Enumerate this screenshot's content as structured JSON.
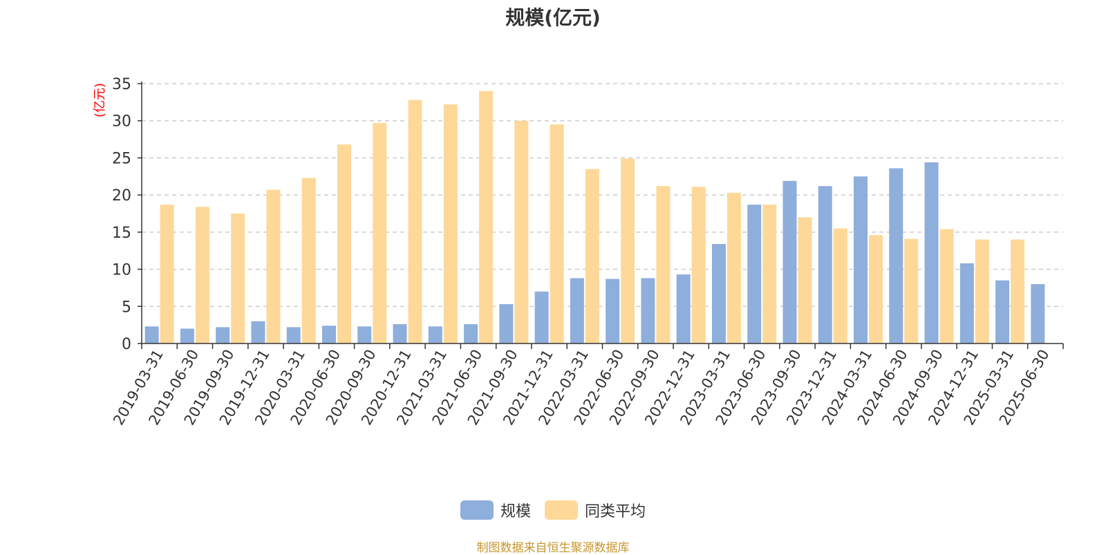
{
  "title": "规模(亿元)",
  "source_note": "制图数据来自恒生聚源数据库",
  "colors": {
    "series_scale": "#8eaedc",
    "series_avg": "#fed898",
    "grid": "#cccccc",
    "axis": "#333333",
    "ylabel": "#ff0000"
  },
  "legend": [
    {
      "label": "规模",
      "color": "#8eaedc"
    },
    {
      "label": "同类平均",
      "color": "#fed898"
    }
  ],
  "chart_data": {
    "type": "bar",
    "title": "规模(亿元)",
    "ylabel": "(亿元)",
    "xlabel": "",
    "ylim": [
      0,
      35
    ],
    "yticks": [
      0,
      5,
      10,
      15,
      20,
      25,
      30,
      35
    ],
    "grid": true,
    "legend_position": "bottom-center",
    "categories": [
      "2019-03-31",
      "2019-06-30",
      "2019-09-30",
      "2019-12-31",
      "2020-03-31",
      "2020-06-30",
      "2020-09-30",
      "2020-12-31",
      "2021-03-31",
      "2021-06-30",
      "2021-09-30",
      "2021-12-31",
      "2022-03-31",
      "2022-06-30",
      "2022-09-30",
      "2022-12-31",
      "2023-03-31",
      "2023-06-30",
      "2023-09-30",
      "2023-12-31",
      "2024-03-31",
      "2024-06-30",
      "2024-09-30",
      "2024-12-31",
      "2025-03-31",
      "2025-06-30"
    ],
    "series": [
      {
        "name": "规模",
        "color": "#8eaedc",
        "values": [
          2.3,
          2.0,
          2.2,
          3.0,
          2.2,
          2.4,
          2.3,
          2.6,
          2.3,
          2.6,
          5.3,
          7.0,
          8.8,
          8.7,
          8.8,
          9.3,
          13.4,
          18.7,
          21.9,
          21.2,
          22.5,
          23.6,
          24.4,
          10.8,
          8.5,
          8.0
        ]
      },
      {
        "name": "同类平均",
        "color": "#fed898",
        "values": [
          18.7,
          18.4,
          17.5,
          20.7,
          22.3,
          26.8,
          29.7,
          32.8,
          32.2,
          34.0,
          30.0,
          29.5,
          23.5,
          24.9,
          21.2,
          21.1,
          20.3,
          18.7,
          17.0,
          15.5,
          14.6,
          14.1,
          15.4,
          14.0,
          14.0,
          null
        ]
      }
    ]
  }
}
